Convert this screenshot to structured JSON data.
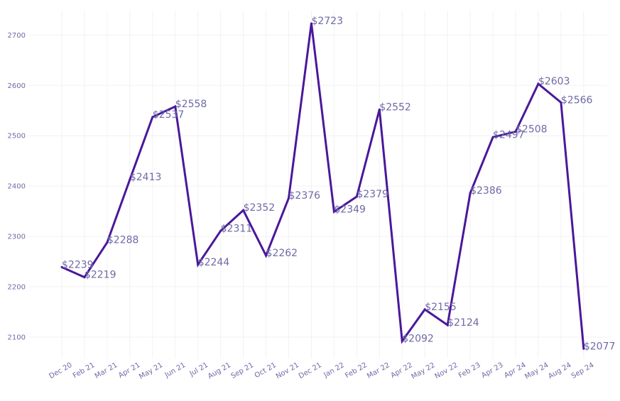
{
  "chart_data": {
    "type": "line",
    "title": "",
    "xlabel": "",
    "ylabel": "",
    "ylim": [
      2050,
      2750
    ],
    "yticks": [
      2100,
      2200,
      2300,
      2400,
      2500,
      2600,
      2700
    ],
    "ytick_labels": [
      "2100",
      "2200",
      "2300",
      "2400",
      "2500",
      "2600",
      "2700"
    ],
    "grid": true,
    "legend": "none",
    "line_color": "#4a189a",
    "label_color": "#6e6aa6",
    "categories": [
      "Dec 20",
      "Feb 21",
      "Mar 21",
      "Apr 21",
      "May 21",
      "Jun 21",
      "Jul 21",
      "Aug 21",
      "Sep 21",
      "Oct 21",
      "Nov 21",
      "Dec 21",
      "Jan 22",
      "Feb 22",
      "Mar 22",
      "Apr 22",
      "May 22",
      "Nov 22",
      "Feb 23",
      "Apr 23",
      "Apr 24",
      "May 24",
      "Aug 24",
      "Sep 24"
    ],
    "values": [
      2239,
      2219,
      2288,
      2413,
      2537,
      2558,
      2244,
      2311,
      2352,
      2262,
      2376,
      2723,
      2349,
      2379,
      2552,
      2092,
      2155,
      2124,
      2386,
      2497,
      2508,
      2603,
      2566,
      2077
    ],
    "data_labels": [
      "$2239",
      "$2219",
      "$2288",
      "$2413",
      "$2537",
      "$2558",
      "$2244",
      "$2311",
      "$2352",
      "$2262",
      "$2376",
      "$2723",
      "$2349",
      "$2379",
      "$2552",
      "$2092",
      "$2155",
      "$2124",
      "$2386",
      "$2497",
      "$2508",
      "$2603",
      "$2566",
      "$2077"
    ]
  }
}
